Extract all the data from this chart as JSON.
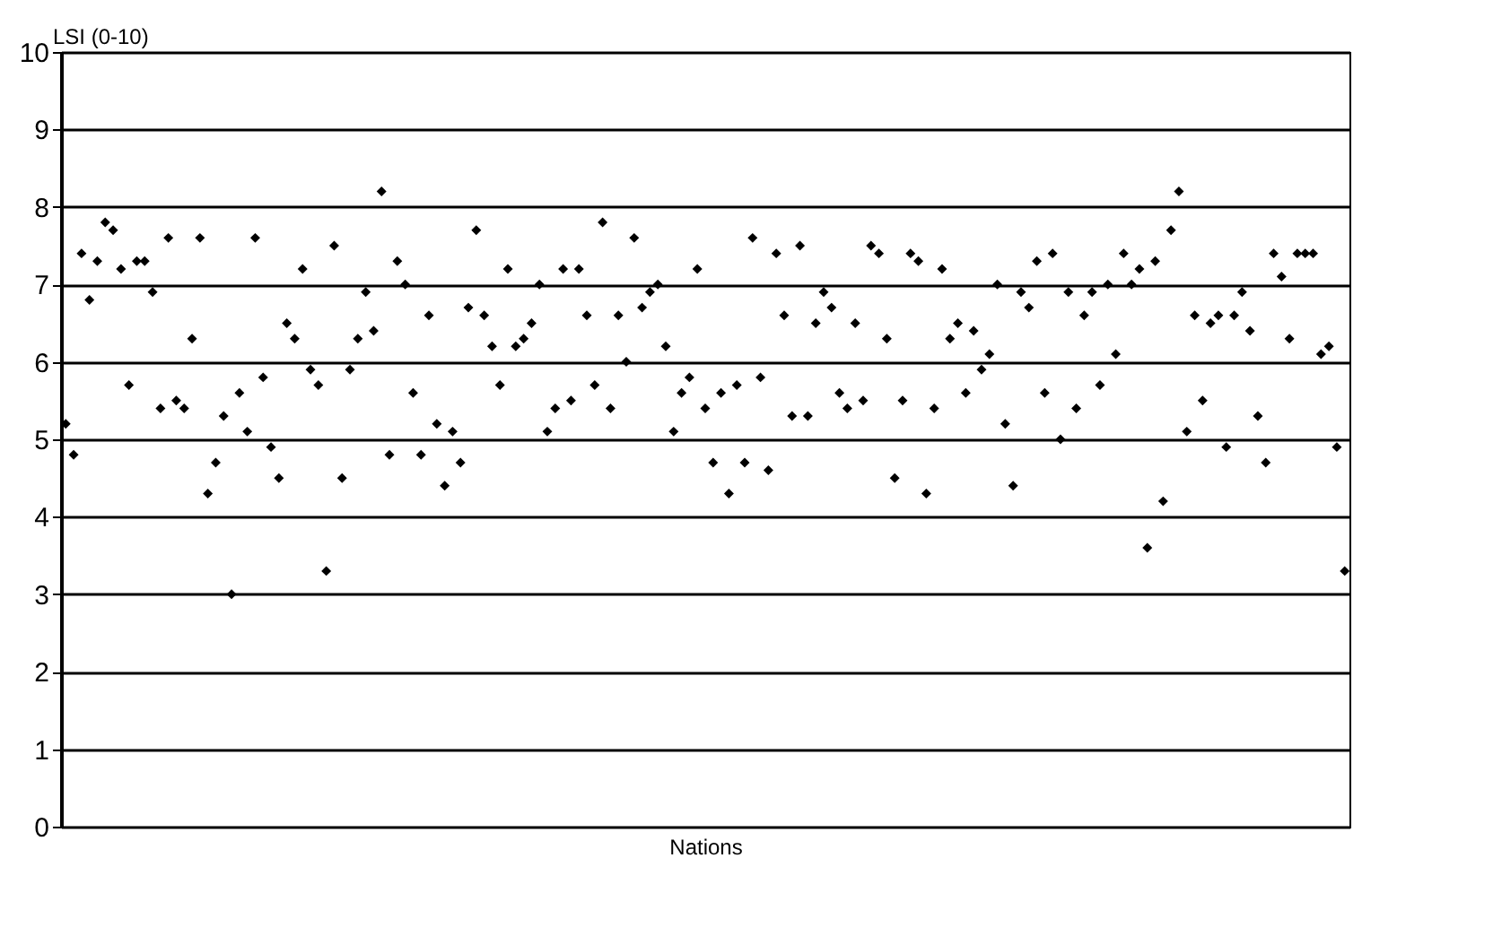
{
  "chart_data": {
    "type": "scatter",
    "ylabel": "LSI (0-10)",
    "xlabel": "Nations",
    "categories": [
      null,
      null,
      null,
      null,
      null,
      null,
      null,
      null,
      null,
      null,
      null,
      null,
      null,
      null,
      null,
      null,
      null,
      null,
      null,
      null,
      null,
      null,
      null,
      null,
      null,
      null,
      null,
      null,
      null,
      null,
      null,
      null,
      null,
      null,
      null,
      null,
      null,
      null,
      null,
      null,
      null,
      null,
      null,
      null,
      null,
      null,
      null,
      null,
      null,
      null,
      null,
      null,
      null,
      null,
      null,
      null,
      null,
      null,
      null,
      null,
      null,
      null,
      null,
      null,
      null,
      null,
      null,
      null,
      null,
      null,
      null,
      null,
      null,
      null,
      null,
      null,
      null,
      null,
      null,
      null,
      null,
      null,
      null,
      null,
      null,
      null,
      null,
      null,
      null,
      null,
      null,
      null,
      null,
      null,
      null,
      null,
      null,
      null,
      null,
      null,
      null,
      null,
      null,
      null,
      null,
      null,
      null,
      null,
      null,
      null,
      null,
      null,
      null,
      null,
      null,
      null,
      null,
      null,
      null,
      null,
      null,
      null,
      null,
      null,
      null,
      null,
      null,
      null,
      null,
      null,
      null,
      null,
      null,
      null,
      null,
      null,
      null,
      null,
      null,
      null,
      null,
      null,
      null,
      null,
      null,
      null,
      null,
      null,
      null,
      null,
      null,
      null,
      null,
      null,
      null,
      null,
      null,
      null,
      null,
      null,
      null,
      null,
      null
    ],
    "values": [
      5.2,
      4.8,
      7.4,
      6.8,
      7.3,
      7.8,
      7.7,
      7.2,
      5.7,
      7.3,
      7.3,
      6.9,
      5.4,
      7.6,
      5.5,
      5.4,
      6.3,
      7.6,
      4.3,
      4.7,
      5.3,
      3.0,
      5.6,
      5.1,
      7.6,
      5.8,
      4.9,
      4.5,
      6.5,
      6.3,
      7.2,
      5.9,
      5.7,
      3.3,
      7.5,
      4.5,
      5.9,
      6.3,
      6.9,
      6.4,
      8.2,
      4.8,
      7.3,
      7.0,
      5.6,
      4.8,
      6.6,
      5.2,
      4.4,
      5.1,
      4.7,
      6.7,
      7.7,
      6.6,
      6.2,
      5.7,
      7.2,
      6.2,
      6.3,
      6.5,
      7.0,
      5.1,
      5.4,
      7.2,
      5.5,
      7.2,
      6.6,
      5.7,
      7.8,
      5.4,
      6.6,
      6.0,
      7.6,
      6.7,
      6.9,
      7.0,
      6.2,
      5.1,
      5.6,
      5.8,
      7.2,
      5.4,
      4.7,
      5.6,
      4.3,
      5.7,
      4.7,
      7.6,
      5.8,
      4.6,
      7.4,
      6.6,
      5.3,
      7.5,
      5.3,
      6.5,
      6.9,
      6.7,
      5.6,
      5.4,
      6.5,
      5.5,
      7.5,
      7.4,
      6.3,
      4.5,
      5.5,
      7.4,
      7.3,
      4.3,
      5.4,
      7.2,
      6.3,
      6.5,
      5.6,
      6.4,
      5.9,
      6.1,
      7.0,
      5.2,
      4.4,
      6.9,
      6.7,
      7.3,
      5.6,
      7.4,
      5.0,
      6.9,
      5.4,
      6.6,
      6.9,
      5.7,
      7.0,
      6.1,
      7.4,
      7.0,
      7.2,
      3.6,
      7.3,
      4.2,
      7.7,
      8.2,
      5.1,
      6.6,
      5.5,
      6.5,
      6.6,
      4.9,
      6.6,
      6.9,
      6.4,
      5.3,
      4.7,
      7.4,
      7.1,
      6.3,
      7.4,
      7.4,
      7.4,
      6.1,
      6.2,
      4.9,
      3.3
    ],
    "color": "#000000",
    "marker": "diamond",
    "ylim": [
      0,
      10
    ],
    "yticks": [
      0,
      1,
      2,
      3,
      4,
      5,
      6,
      7,
      8,
      9,
      10
    ],
    "grid": "y"
  }
}
